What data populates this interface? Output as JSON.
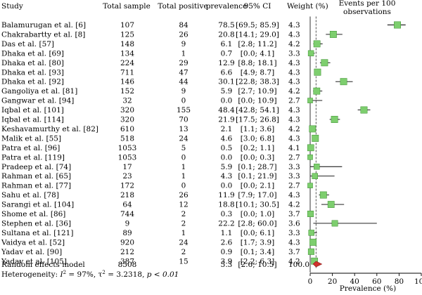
{
  "chart_data": {
    "type": "forest",
    "columns": {
      "study": "Study",
      "total_sample": "Total sample",
      "total_positive": "Total positive",
      "prevalence": "prevalence",
      "ci": "95% CI",
      "weight": "Weight (%)",
      "plot_header_line1": "Events per 100",
      "plot_header_line2": "observations"
    },
    "studies": [
      {
        "study": "Balamurugan et al. [6]",
        "total_sample": "107",
        "total_positive": "84",
        "prevalence": 78.5,
        "ci_low": 69.5,
        "ci_high": 85.9,
        "ci_text": "[69.5; 85.9]",
        "weight": "4.3"
      },
      {
        "study": "Chakrabartty et al. [8]",
        "total_sample": "125",
        "total_positive": "26",
        "prevalence": 20.8,
        "ci_low": 14.1,
        "ci_high": 29.0,
        "ci_text": "[14.1; 29.0]",
        "weight": "4.3"
      },
      {
        "study": "Das et al. [57]",
        "total_sample": "148",
        "total_positive": "9",
        "prevalence": 6.1,
        "ci_low": 2.8,
        "ci_high": 11.2,
        "ci_text": "[2.8; 11.2]",
        "weight": "4.2"
      },
      {
        "study": "Dhaka et al. [69]",
        "total_sample": "134",
        "total_positive": "1",
        "prevalence": 0.7,
        "ci_low": 0.0,
        "ci_high": 4.1,
        "ci_text": "[0.0;  4.1]",
        "weight": "3.3"
      },
      {
        "study": "Dhaka et al. [80]",
        "total_sample": "224",
        "total_positive": "29",
        "prevalence": 12.9,
        "ci_low": 8.8,
        "ci_high": 18.1,
        "ci_text": "[8.8; 18.1]",
        "weight": "4.3"
      },
      {
        "study": "Dhaka et al. [93]",
        "total_sample": "711",
        "total_positive": "47",
        "prevalence": 6.6,
        "ci_low": 4.9,
        "ci_high": 8.7,
        "ci_text": "[4.9;  8.7]",
        "weight": "4.3"
      },
      {
        "study": "Dhaka et al. [92]",
        "total_sample": "146",
        "total_positive": "44",
        "prevalence": 30.1,
        "ci_low": 22.8,
        "ci_high": 38.3,
        "ci_text": "[22.8; 38.3]",
        "weight": "4.3"
      },
      {
        "study": "Gangoliya et al. [81]",
        "total_sample": "152",
        "total_positive": "9",
        "prevalence": 5.9,
        "ci_low": 2.7,
        "ci_high": 10.9,
        "ci_text": "[2.7; 10.9]",
        "weight": "4.2"
      },
      {
        "study": "Gangwar et al. [94]",
        "total_sample": "32",
        "total_positive": "0",
        "prevalence": 0.0,
        "ci_low": 0.0,
        "ci_high": 10.9,
        "ci_text": "[0.0; 10.9]",
        "weight": "2.7"
      },
      {
        "study": "Iqbal et al. [101]",
        "total_sample": "320",
        "total_positive": "155",
        "prevalence": 48.4,
        "ci_low": 42.8,
        "ci_high": 54.1,
        "ci_text": "[42.8; 54.1]",
        "weight": "4.3"
      },
      {
        "study": "Iqbal et al. [114]",
        "total_sample": "320",
        "total_positive": "70",
        "prevalence": 21.9,
        "ci_low": 17.5,
        "ci_high": 26.8,
        "ci_text": "[17.5; 26.8]",
        "weight": "4.3"
      },
      {
        "study": "Keshavamurthy et al. [82]",
        "total_sample": "610",
        "total_positive": "13",
        "prevalence": 2.1,
        "ci_low": 1.1,
        "ci_high": 3.6,
        "ci_text": "[1.1;  3.6]",
        "weight": "4.2"
      },
      {
        "study": "Malik et al. [55]",
        "total_sample": "518",
        "total_positive": "24",
        "prevalence": 4.6,
        "ci_low": 3.0,
        "ci_high": 6.8,
        "ci_text": "[3.0;  6.8]",
        "weight": "4.3"
      },
      {
        "study": "Patra et al. [96]",
        "total_sample": "1053",
        "total_positive": "5",
        "prevalence": 0.5,
        "ci_low": 0.2,
        "ci_high": 1.1,
        "ci_text": "[0.2;  1.1]",
        "weight": "4.1"
      },
      {
        "study": "Patra et al. [119]",
        "total_sample": "1053",
        "total_positive": "0",
        "prevalence": 0.0,
        "ci_low": 0.0,
        "ci_high": 0.3,
        "ci_text": "[0.0;  0.3]",
        "weight": "2.7"
      },
      {
        "study": "Pradeep et al. [74]",
        "total_sample": "17",
        "total_positive": "1",
        "prevalence": 5.9,
        "ci_low": 0.1,
        "ci_high": 28.7,
        "ci_text": "[0.1; 28.7]",
        "weight": "3.3"
      },
      {
        "study": "Rahman et al. [65]",
        "total_sample": "23",
        "total_positive": "1",
        "prevalence": 4.3,
        "ci_low": 0.1,
        "ci_high": 21.9,
        "ci_text": "[0.1; 21.9]",
        "weight": "3.3"
      },
      {
        "study": "Rahman et al. [77]",
        "total_sample": "172",
        "total_positive": "0",
        "prevalence": 0.0,
        "ci_low": 0.0,
        "ci_high": 2.1,
        "ci_text": "[0.0;  2.1]",
        "weight": "2.7"
      },
      {
        "study": "Sahu et al. [78]",
        "total_sample": "218",
        "total_positive": "26",
        "prevalence": 11.9,
        "ci_low": 7.9,
        "ci_high": 17.0,
        "ci_text": "[7.9; 17.0]",
        "weight": "4.3"
      },
      {
        "study": "Sarangi et al. [104]",
        "total_sample": "64",
        "total_positive": "12",
        "prevalence": 18.8,
        "ci_low": 10.1,
        "ci_high": 30.5,
        "ci_text": "[10.1; 30.5]",
        "weight": "4.2"
      },
      {
        "study": "Shome et al. [86]",
        "total_sample": "744",
        "total_positive": "2",
        "prevalence": 0.3,
        "ci_low": 0.0,
        "ci_high": 1.0,
        "ci_text": "[0.0;  1.0]",
        "weight": "3.7"
      },
      {
        "study": "Stephen et al. [36]",
        "total_sample": "9",
        "total_positive": "2",
        "prevalence": 22.2,
        "ci_low": 2.8,
        "ci_high": 60.0,
        "ci_text": "[2.8; 60.0]",
        "weight": "3.6"
      },
      {
        "study": "Sultana et al. [121]",
        "total_sample": "89",
        "total_positive": "1",
        "prevalence": 1.1,
        "ci_low": 0.0,
        "ci_high": 6.1,
        "ci_text": "[0.0;  6.1]",
        "weight": "3.3"
      },
      {
        "study": "Vaidya et al. [52]",
        "total_sample": "920",
        "total_positive": "24",
        "prevalence": 2.6,
        "ci_low": 1.7,
        "ci_high": 3.9,
        "ci_text": "[1.7;  3.9]",
        "weight": "4.3"
      },
      {
        "study": "Yadav et al. [90]",
        "total_sample": "212",
        "total_positive": "2",
        "prevalence": 0.9,
        "ci_low": 0.1,
        "ci_high": 3.4,
        "ci_text": "[0.1;  3.4]",
        "weight": "3.7"
      },
      {
        "study": "Yadav et al. [105]",
        "total_sample": "387",
        "total_positive": "15",
        "prevalence": 3.9,
        "ci_low": 2.2,
        "ci_high": 6.3,
        "ci_text": "[2.2;  6.3]",
        "weight": "4.2"
      }
    ],
    "summary": {
      "label": "Random effects model",
      "total_sample": "8508",
      "prevalence": 5.3,
      "ci_low": 2.6,
      "ci_high": 10.5,
      "ci_text": "[2.6; 10.5]",
      "weight": "100.0"
    },
    "heterogeneity": {
      "prefix": "Heterogeneity: ",
      "i2_value": " = 97%, ",
      "tau2_value": " = 3.2318, ",
      "p_text": "p < 0.01"
    },
    "x_axis": {
      "label": "Prevalence (%)",
      "range": [
        0,
        100
      ],
      "ticks": [
        0,
        20,
        40,
        60,
        80,
        100
      ]
    },
    "colors": {
      "box": "#7dce6e",
      "box_edge": "#3a8f2e",
      "diamond": "#d0312d",
      "diamond_edge": "#8b1a17",
      "ref_line": "#555555"
    }
  }
}
